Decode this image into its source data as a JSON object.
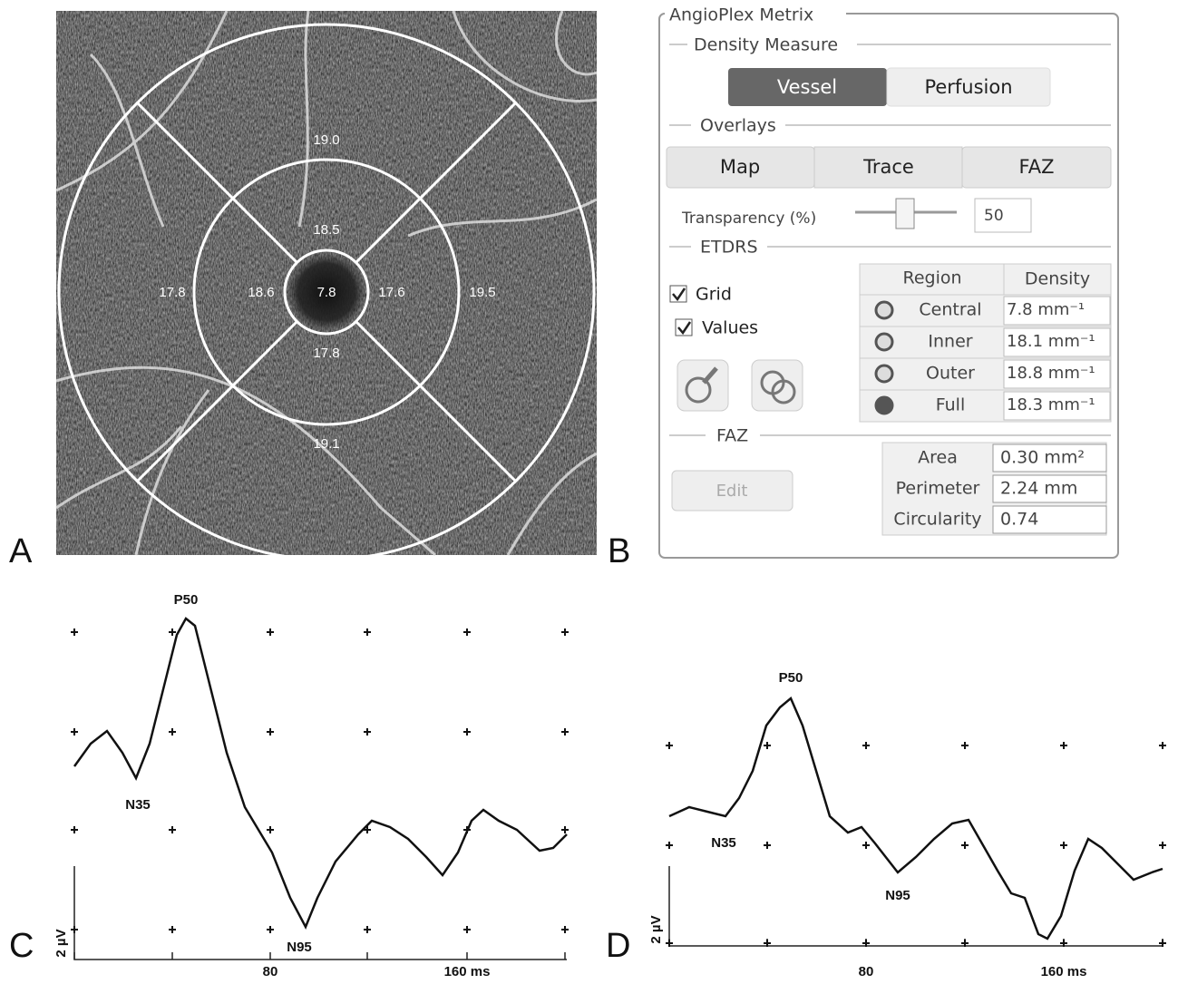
{
  "panel_labels": [
    "A",
    "B",
    "C",
    "D"
  ],
  "octa": {
    "etdrs_values": [
      "19.0",
      "18.5",
      "17.8",
      "18.6",
      "7.8",
      "17.6",
      "19.5",
      "17.8",
      "19.1"
    ]
  },
  "angioplex": {
    "title": "AngioPlex Metrix",
    "density_measure": {
      "title": "Density Measure",
      "buttons": [
        "Vessel",
        "Perfusion"
      ]
    },
    "overlays": {
      "title": "Overlays",
      "buttons": [
        "Map",
        "Trace",
        "FAZ"
      ],
      "transparency_label": "Transparency (%)",
      "transparency_value": "50"
    },
    "etdrs": {
      "title": "ETDRS",
      "checkboxes": [
        "Grid",
        "Values"
      ],
      "table": {
        "header": [
          "Region",
          "Density"
        ],
        "rows": [
          [
            "Central",
            "7.8 mm⁻¹"
          ],
          [
            "Inner",
            "18.1 mm⁻¹"
          ],
          [
            "Outer",
            "18.8 mm⁻¹"
          ],
          [
            "Full",
            "18.3 mm⁻¹"
          ]
        ]
      }
    },
    "faz": {
      "title": "FAZ",
      "button": "Edit",
      "table": {
        "rows": [
          [
            "Area",
            "0.30 mm²"
          ],
          [
            "Perimeter",
            "2.24 mm"
          ],
          [
            "Circularity",
            "0.74"
          ]
        ]
      }
    }
  },
  "perg_c": {
    "peaks": [
      "P50",
      "N35",
      "N95"
    ],
    "x_labels": [
      "80",
      "160 ms"
    ],
    "y_label": "2 µV"
  },
  "perg_d": {
    "peaks": [
      "P50",
      "N35",
      "N95"
    ],
    "x_labels": [
      "80",
      "160 ms"
    ],
    "y_label": "2 µV"
  }
}
